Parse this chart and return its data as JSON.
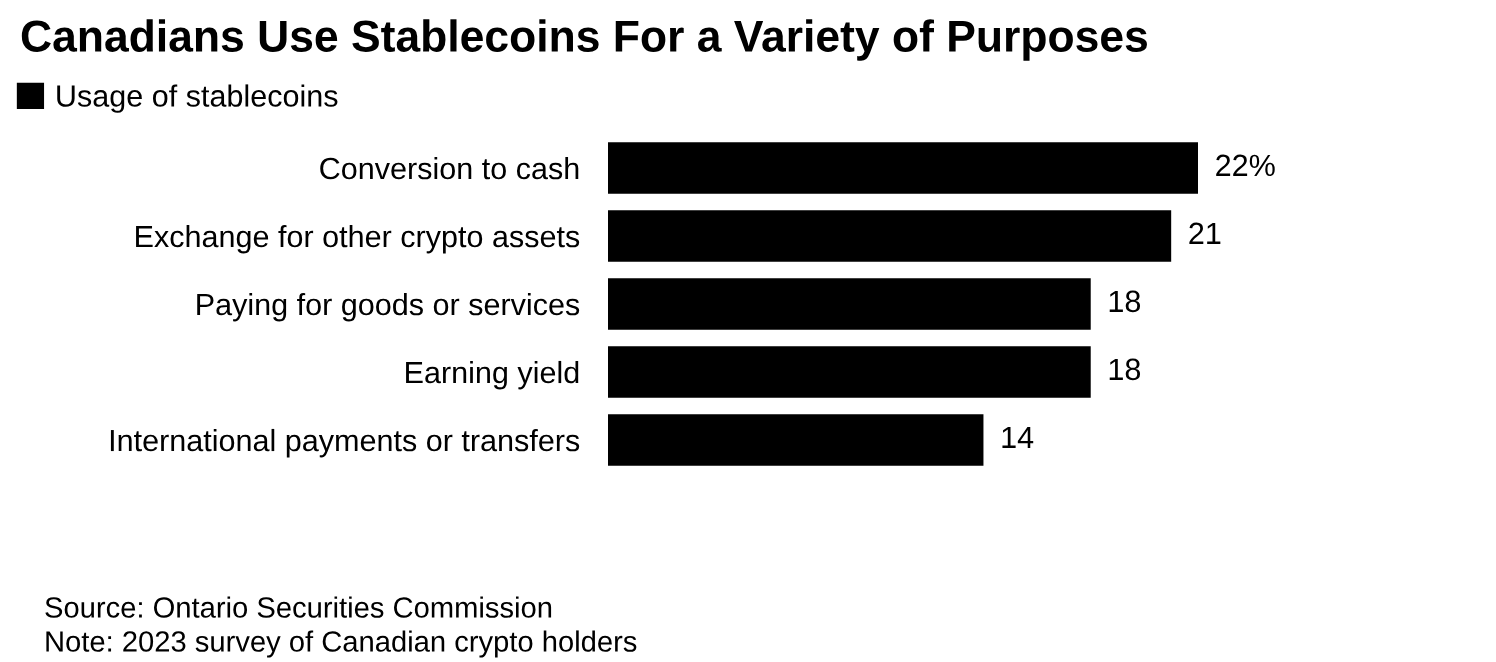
{
  "chart_data": {
    "type": "bar",
    "orientation": "horizontal",
    "title": "Canadians Use Stablecoins For a Variety of Purposes",
    "categories": [
      "Conversion to cash",
      "Exchange for other crypto assets",
      "Paying for goods or services",
      "Earning yield",
      "International payments or transfers"
    ],
    "series": [
      {
        "name": "Usage of stablecoins",
        "color": "#000000",
        "values": [
          22,
          21,
          18,
          18,
          14
        ],
        "value_labels": [
          "22%",
          "21",
          "18",
          "18",
          "14"
        ]
      }
    ],
    "legend": "top left",
    "grid": false,
    "annotations": [
      "Source: Ontario Securities Commission",
      "Note: 2023 survey of Canadian crypto holders"
    ]
  }
}
